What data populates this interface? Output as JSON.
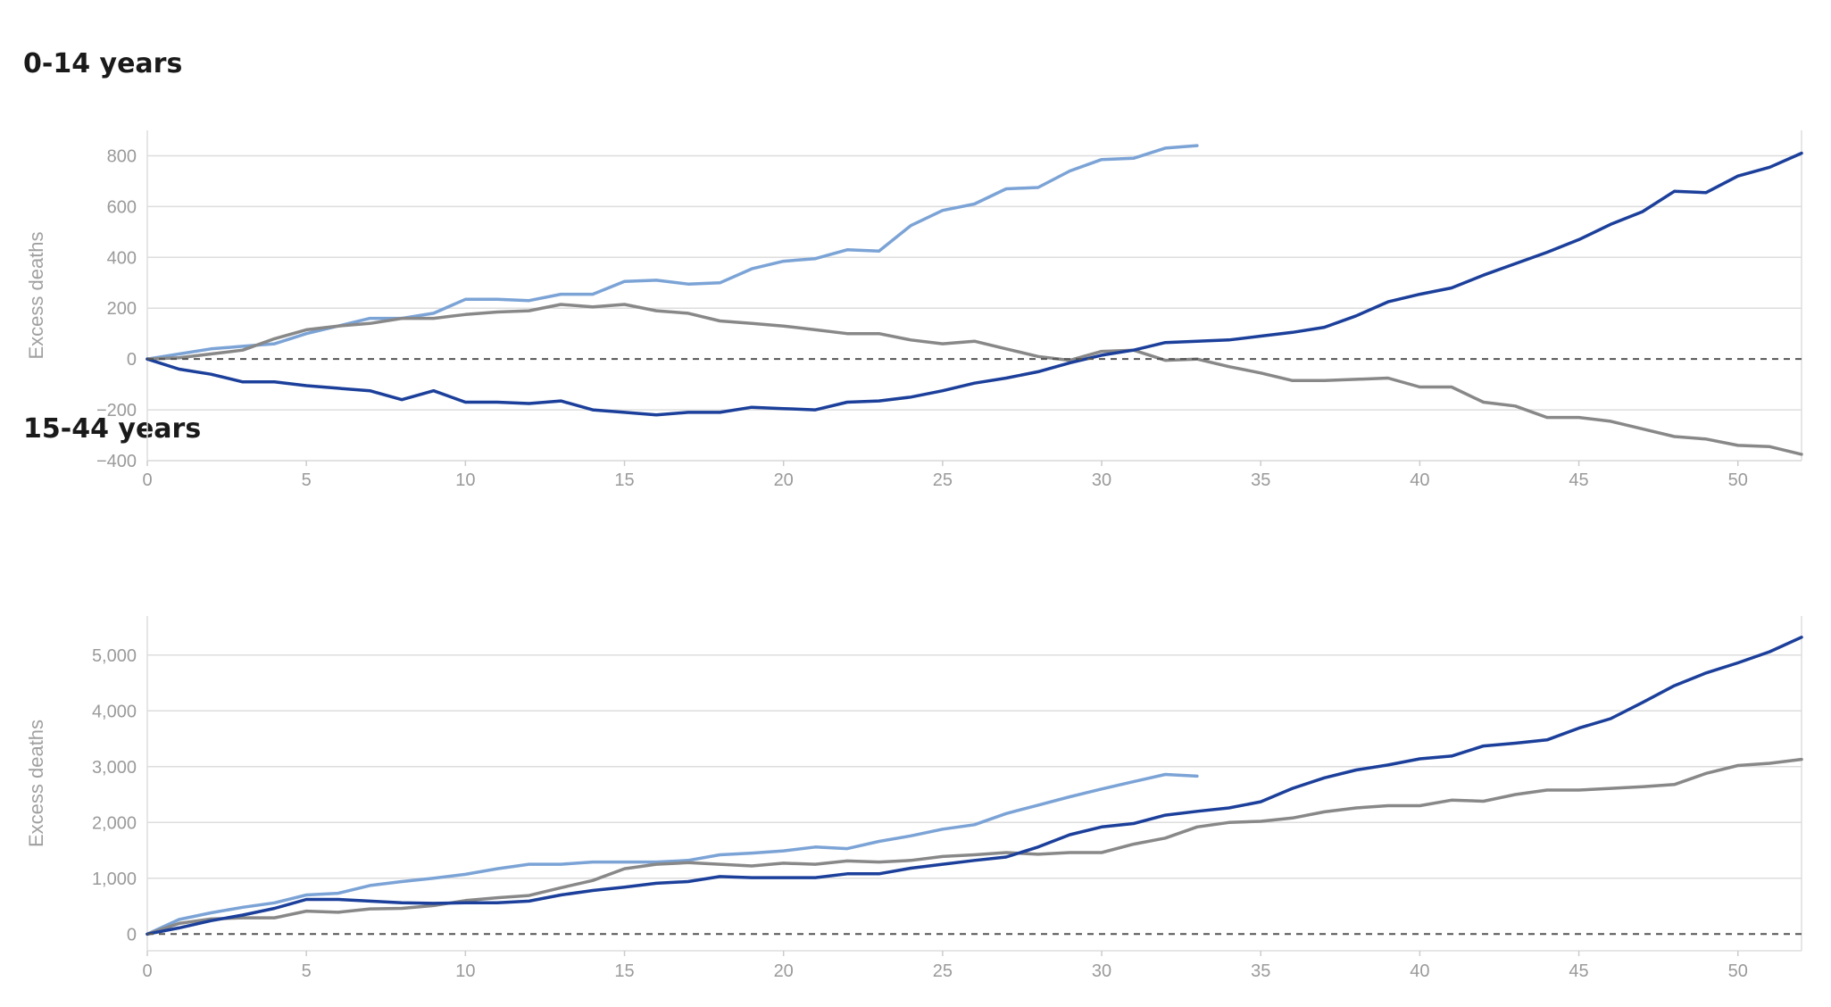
{
  "colors": {
    "current": "#1b3f9a",
    "previous": "#7ba3d6",
    "older": "#888888",
    "grid": "#dddddd",
    "zero": "#555555"
  },
  "chart_data": [
    {
      "type": "line",
      "title": "0-14 years",
      "ylabel": "Excess deaths",
      "xlim": [
        0,
        52
      ],
      "ylim": [
        -400,
        900
      ],
      "xticks": [
        0,
        5,
        10,
        15,
        20,
        25,
        30,
        35,
        40,
        45,
        50
      ],
      "yticks": [
        -400,
        -200,
        0,
        200,
        400,
        600,
        800
      ],
      "ytick_labels": [
        "−400",
        "−200",
        "0",
        "200",
        "400",
        "600",
        "800"
      ],
      "series": [
        {
          "color": "#7ba3d6",
          "x_start": 0,
          "values": [
            0,
            20,
            40,
            50,
            60,
            100,
            130,
            160,
            160,
            180,
            235,
            235,
            230,
            255,
            255,
            305,
            310,
            295,
            300,
            355,
            385,
            395,
            430,
            425,
            525,
            585,
            610,
            670,
            675,
            740,
            785,
            790,
            830,
            840
          ]
        },
        {
          "color": "#888888",
          "x_start": 0,
          "values": [
            0,
            5,
            20,
            35,
            80,
            115,
            130,
            140,
            160,
            160,
            175,
            185,
            190,
            215,
            205,
            215,
            190,
            180,
            150,
            140,
            130,
            115,
            100,
            100,
            75,
            60,
            70,
            40,
            10,
            -5,
            30,
            35,
            -5,
            0,
            -30,
            -55,
            -85,
            -85,
            -80,
            -75,
            -110,
            -110,
            -170,
            -185,
            -230,
            -230,
            -245,
            -275,
            -305,
            -315,
            -340,
            -345,
            -375
          ]
        },
        {
          "color": "#1b3f9a",
          "x_start": 0,
          "values": [
            0,
            -40,
            -60,
            -90,
            -90,
            -105,
            -115,
            -125,
            -160,
            -125,
            -170,
            -170,
            -175,
            -165,
            -200,
            -210,
            -220,
            -210,
            -210,
            -190,
            -195,
            -200,
            -170,
            -165,
            -150,
            -125,
            -95,
            -75,
            -50,
            -15,
            15,
            35,
            65,
            70,
            75,
            90,
            105,
            125,
            170,
            225,
            255,
            280,
            330,
            375,
            420,
            470,
            530,
            580,
            660,
            655,
            720,
            755,
            810
          ]
        }
      ]
    },
    {
      "type": "line",
      "title": "15-44 years",
      "ylabel": "Excess deaths",
      "xlim": [
        0,
        52
      ],
      "ylim": [
        -300,
        5700
      ],
      "xticks": [
        0,
        5,
        10,
        15,
        20,
        25,
        30,
        35,
        40,
        45,
        50
      ],
      "yticks": [
        0,
        1000,
        2000,
        3000,
        4000,
        5000
      ],
      "ytick_labels": [
        "0",
        "1,000",
        "2,000",
        "3,000",
        "4,000",
        "5,000"
      ],
      "series": [
        {
          "color": "#7ba3d6",
          "x_start": 0,
          "values": [
            0,
            260,
            380,
            480,
            560,
            700,
            730,
            870,
            940,
            1000,
            1070,
            1170,
            1250,
            1250,
            1290,
            1290,
            1290,
            1320,
            1420,
            1450,
            1490,
            1560,
            1530,
            1660,
            1760,
            1880,
            1960,
            2160,
            2310,
            2460,
            2600,
            2730,
            2860,
            2830
          ]
        },
        {
          "color": "#888888",
          "x_start": 0,
          "values": [
            0,
            190,
            270,
            290,
            290,
            410,
            390,
            450,
            460,
            510,
            600,
            650,
            690,
            830,
            960,
            1170,
            1250,
            1280,
            1250,
            1220,
            1270,
            1250,
            1310,
            1290,
            1320,
            1390,
            1420,
            1460,
            1430,
            1460,
            1460,
            1610,
            1720,
            1920,
            2000,
            2020,
            2080,
            2190,
            2260,
            2300,
            2300,
            2400,
            2380,
            2500,
            2580,
            2580,
            2610,
            2640,
            2680,
            2880,
            3020,
            3060,
            3130
          ]
        },
        {
          "color": "#1b3f9a",
          "x_start": 0,
          "values": [
            0,
            110,
            240,
            340,
            460,
            620,
            620,
            590,
            560,
            550,
            560,
            560,
            590,
            700,
            780,
            840,
            910,
            940,
            1030,
            1010,
            1010,
            1010,
            1080,
            1080,
            1180,
            1250,
            1320,
            1380,
            1560,
            1780,
            1920,
            1980,
            2130,
            2200,
            2260,
            2370,
            2610,
            2800,
            2940,
            3030,
            3140,
            3190,
            3370,
            3420,
            3480,
            3690,
            3860,
            4150,
            4450,
            4680,
            4860,
            5060,
            5320
          ]
        }
      ]
    }
  ]
}
